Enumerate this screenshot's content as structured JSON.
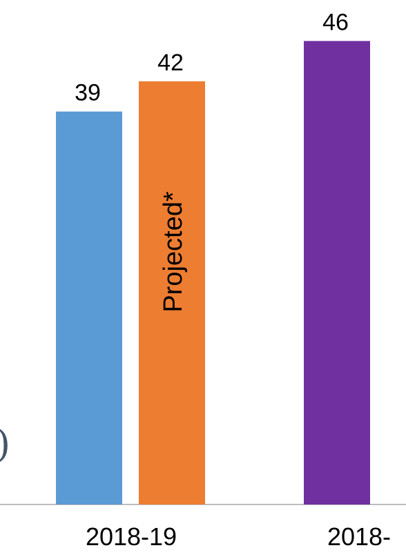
{
  "chart_data": {
    "type": "bar",
    "series": [
      {
        "category": "2018-19",
        "value": 39,
        "color": "#5b9bd5",
        "label": "39"
      },
      {
        "category": "2018-19",
        "value": 42,
        "color": "#ed7d31",
        "label": "42",
        "annotation": "Projected*"
      },
      {
        "category": "2018-",
        "value": 46,
        "color": "#7030a0",
        "label": "46"
      }
    ],
    "categories": [
      "2018-19",
      "2018-"
    ],
    "ylim": [
      0,
      60
    ],
    "grid": false,
    "axis_color": "#a6a6a6",
    "left_edge_glyph": ")"
  }
}
